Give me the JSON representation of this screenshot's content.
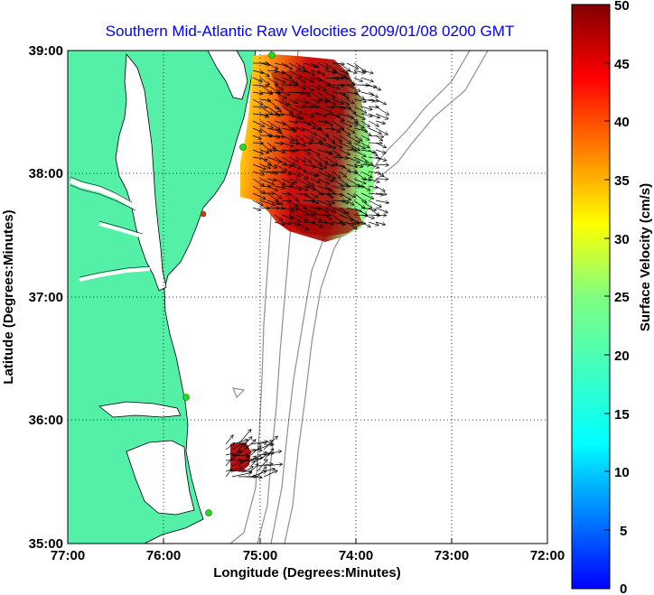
{
  "title": "Southern Mid-Atlantic Raw Velocities 2009/01/08 0200 GMT",
  "x_axis": {
    "label": "Longitude (Degrees:Minutes)",
    "ticks": [
      "77:00",
      "76:00",
      "75:00",
      "74:00",
      "73:00",
      "72:00"
    ]
  },
  "y_axis": {
    "label": "Latitude (Degrees:Minutes)",
    "ticks": [
      "39:00",
      "38:00",
      "37:00",
      "36:00",
      "35:00"
    ]
  },
  "colorbar": {
    "label": "Surface Velocity (cm/s)",
    "ticks": [
      "50",
      "45",
      "40",
      "35",
      "30",
      "25",
      "20",
      "15",
      "10",
      "5",
      "0"
    ],
    "min": 0,
    "max": 50
  },
  "colors": {
    "land": "#55f0a8",
    "title": "#0000ff",
    "station": "#22dd22",
    "isobath": "#909090"
  },
  "map_extent": {
    "lon": [
      -77,
      -72
    ],
    "lat": [
      35,
      39
    ]
  }
}
